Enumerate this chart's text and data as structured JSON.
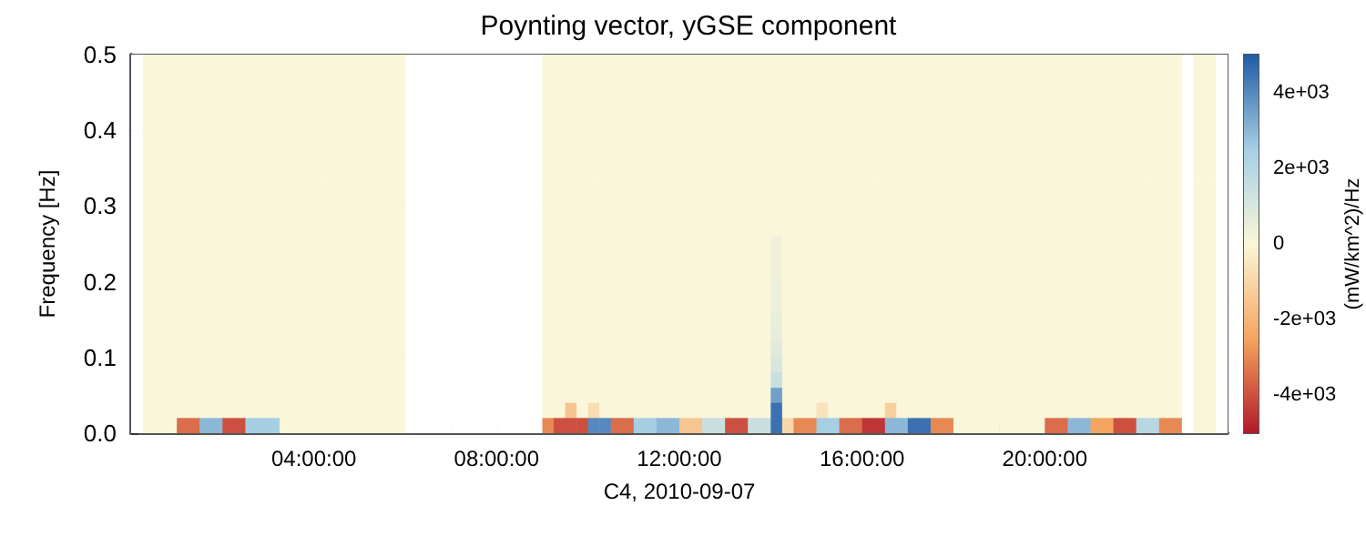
{
  "chart_data": {
    "type": "heatmap",
    "title": "Poynting vector, yGSE component",
    "xlabel": "C4, 2010-09-07",
    "ylabel": "Frequency [Hz]",
    "clabel": "(mW/km^2)/Hz",
    "x": [
      0.125,
      0.375,
      0.625,
      0.875,
      1.125,
      1.375,
      1.625,
      1.875,
      2.125,
      2.375,
      2.625,
      2.875,
      3.125,
      3.375,
      3.625,
      3.875,
      4.125,
      4.375,
      4.625,
      4.875,
      5.125,
      5.375,
      5.625,
      5.875,
      6.125,
      6.375,
      6.625,
      6.875,
      7.125,
      7.375,
      7.625,
      7.875,
      8.125,
      8.375,
      8.625,
      8.875,
      9.125,
      9.375,
      9.625,
      9.875,
      10.125,
      10.375,
      10.625,
      10.875,
      11.125,
      11.375,
      11.625,
      11.875,
      12.125,
      12.375,
      12.625,
      12.875,
      13.125,
      13.375,
      13.625,
      13.875,
      14.125,
      14.375,
      14.625,
      14.875,
      15.125,
      15.375,
      15.625,
      15.875,
      16.125,
      16.375,
      16.625,
      16.875,
      17.125,
      17.375,
      17.625,
      17.875,
      18.125,
      18.375,
      18.625,
      18.875,
      19.125,
      19.375,
      19.625,
      19.875,
      20.125,
      20.375,
      20.625,
      20.875,
      21.125,
      21.375,
      21.625,
      21.875,
      22.125,
      22.375,
      22.625,
      22.875,
      23.125,
      23.375,
      23.625,
      23.875
    ],
    "y": [
      0.49,
      0.47,
      0.45,
      0.43,
      0.41,
      0.39,
      0.37,
      0.35,
      0.33,
      0.31,
      0.29,
      0.27,
      0.25,
      0.23,
      0.21,
      0.19,
      0.17,
      0.15,
      0.13,
      0.11,
      0.09,
      0.07,
      0.05,
      0.03,
      0.01
    ],
    "xlim": [
      0,
      24
    ],
    "ylim": [
      0,
      0.5
    ],
    "xticks": [
      {
        "value": 1,
        "label": null
      },
      {
        "value": 2,
        "label": null
      },
      {
        "value": 3,
        "label": null
      },
      {
        "value": 4,
        "label": "04:00:00"
      },
      {
        "value": 5,
        "label": null
      },
      {
        "value": 6,
        "label": null
      },
      {
        "value": 7,
        "label": null
      },
      {
        "value": 8,
        "label": "08:00:00"
      },
      {
        "value": 9,
        "label": null
      },
      {
        "value": 10,
        "label": null
      },
      {
        "value": 11,
        "label": null
      },
      {
        "value": 12,
        "label": "12:00:00"
      },
      {
        "value": 13,
        "label": null
      },
      {
        "value": 14,
        "label": null
      },
      {
        "value": 15,
        "label": null
      },
      {
        "value": 16,
        "label": "16:00:00"
      },
      {
        "value": 17,
        "label": null
      },
      {
        "value": 18,
        "label": null
      },
      {
        "value": 19,
        "label": null
      },
      {
        "value": 20,
        "label": "20:00:00"
      },
      {
        "value": 21,
        "label": null
      },
      {
        "value": 22,
        "label": null
      },
      {
        "value": 23,
        "label": null
      }
    ],
    "yticks": [
      {
        "value": 0,
        "label": "0.0"
      },
      {
        "value": 0.1,
        "label": "0.1"
      },
      {
        "value": 0.2,
        "label": "0.2"
      },
      {
        "value": 0.3,
        "label": "0.3"
      },
      {
        "value": 0.4,
        "label": "0.4"
      },
      {
        "value": 0.5,
        "label": "0.5"
      }
    ],
    "clim": [
      -5000,
      5000
    ],
    "cticks": [
      {
        "value": -4000,
        "label": "-4e+03"
      },
      {
        "value": -2000,
        "label": "-2e+03"
      },
      {
        "value": 0,
        "label": "0"
      },
      {
        "value": 2000,
        "label": "2e+03"
      },
      {
        "value": 4000,
        "label": "4e+03"
      }
    ],
    "cells": [
      [
        null,
        0,
        0,
        0,
        0,
        0,
        0,
        0,
        0,
        0,
        0,
        0,
        0,
        0,
        0,
        0,
        0,
        0,
        0,
        0,
        0,
        0,
        0,
        0,
        null,
        null,
        null,
        null,
        null,
        null,
        null,
        null,
        null,
        null,
        null,
        null,
        0,
        0,
        0,
        0,
        0,
        0,
        0,
        0,
        0,
        0,
        0,
        0,
        0,
        0,
        0,
        0,
        0,
        0,
        0,
        0,
        0,
        0,
        0,
        0,
        0,
        0,
        0,
        0,
        0,
        0,
        0,
        0,
        0,
        0,
        0,
        0,
        0,
        0,
        0,
        0,
        0,
        0,
        0,
        0,
        0,
        0,
        0,
        0,
        0,
        0,
        0,
        0,
        0,
        0,
        0,
        0,
        null,
        0,
        0,
        null
      ],
      [
        null,
        0,
        0,
        0,
        0,
        0,
        0,
        0,
        0,
        0,
        0,
        0,
        0,
        0,
        0,
        0,
        0,
        0,
        0,
        0,
        0,
        0,
        0,
        0,
        null,
        null,
        null,
        null,
        null,
        null,
        null,
        null,
        null,
        null,
        null,
        null,
        0,
        0,
        0,
        0,
        0,
        0,
        0,
        0,
        0,
        0,
        0,
        0,
        0,
        0,
        0,
        0,
        0,
        0,
        0,
        0,
        0,
        0,
        0,
        0,
        0,
        0,
        0,
        0,
        0,
        0,
        0,
        0,
        0,
        0,
        0,
        0,
        0,
        0,
        0,
        0,
        0,
        0,
        0,
        0,
        0,
        0,
        0,
        0,
        0,
        0,
        0,
        0,
        0,
        0,
        0,
        0,
        null,
        0,
        0,
        null
      ],
      [
        null,
        0,
        0,
        0,
        0,
        0,
        0,
        0,
        0,
        0,
        0,
        0,
        0,
        0,
        0,
        0,
        0,
        0,
        0,
        0,
        0,
        0,
        0,
        0,
        null,
        null,
        null,
        null,
        null,
        null,
        null,
        null,
        null,
        null,
        null,
        null,
        0,
        0,
        0,
        0,
        0,
        0,
        0,
        0,
        0,
        0,
        0,
        0,
        0,
        0,
        0,
        0,
        0,
        0,
        0,
        0,
        0,
        0,
        0,
        0,
        0,
        0,
        0,
        0,
        0,
        0,
        0,
        0,
        0,
        0,
        0,
        0,
        0,
        0,
        0,
        0,
        0,
        0,
        0,
        0,
        0,
        0,
        0,
        0,
        0,
        0,
        0,
        0,
        0,
        0,
        0,
        0,
        null,
        0,
        0,
        null
      ],
      [
        null,
        0,
        0,
        0,
        0,
        0,
        0,
        0,
        0,
        0,
        0,
        0,
        0,
        0,
        0,
        0,
        0,
        0,
        0,
        0,
        0,
        0,
        0,
        0,
        null,
        null,
        null,
        null,
        null,
        null,
        null,
        null,
        null,
        null,
        null,
        null,
        0,
        0,
        0,
        0,
        0,
        0,
        0,
        0,
        0,
        0,
        0,
        0,
        0,
        0,
        0,
        0,
        0,
        0,
        0,
        0,
        0,
        0,
        0,
        0,
        0,
        0,
        0,
        0,
        0,
        0,
        0,
        0,
        0,
        0,
        0,
        0,
        0,
        0,
        0,
        0,
        0,
        0,
        0,
        0,
        0,
        0,
        0,
        0,
        0,
        0,
        0,
        0,
        0,
        0,
        0,
        0,
        null,
        0,
        0,
        null
      ],
      [
        null,
        0,
        0,
        0,
        0,
        0,
        0,
        0,
        0,
        0,
        0,
        0,
        0,
        0,
        0,
        0,
        0,
        0,
        0,
        0,
        0,
        0,
        0,
        0,
        null,
        null,
        null,
        null,
        null,
        null,
        null,
        null,
        null,
        null,
        null,
        null,
        0,
        0,
        0,
        0,
        0,
        0,
        0,
        0,
        0,
        0,
        0,
        0,
        0,
        0,
        0,
        0,
        0,
        0,
        0,
        0,
        0,
        0,
        0,
        0,
        0,
        0,
        0,
        0,
        0,
        0,
        0,
        0,
        0,
        0,
        0,
        0,
        0,
        0,
        0,
        0,
        0,
        0,
        0,
        0,
        0,
        0,
        0,
        0,
        0,
        0,
        0,
        0,
        0,
        0,
        0,
        0,
        null,
        0,
        0,
        null
      ],
      [
        null,
        0,
        0,
        0,
        0,
        0,
        0,
        0,
        0,
        0,
        0,
        0,
        0,
        0,
        0,
        0,
        0,
        0,
        0,
        0,
        0,
        0,
        0,
        0,
        null,
        null,
        null,
        null,
        null,
        null,
        null,
        null,
        null,
        null,
        null,
        null,
        0,
        0,
        0,
        0,
        0,
        0,
        0,
        0,
        0,
        0,
        0,
        0,
        0,
        0,
        0,
        0,
        0,
        0,
        0,
        0,
        0,
        0,
        0,
        0,
        0,
        0,
        0,
        0,
        0,
        0,
        0,
        0,
        0,
        0,
        0,
        0,
        0,
        0,
        0,
        0,
        0,
        0,
        0,
        0,
        0,
        0,
        0,
        0,
        0,
        0,
        0,
        0,
        0,
        0,
        0,
        0,
        null,
        0,
        0,
        null
      ],
      [
        null,
        0,
        0,
        0,
        0,
        0,
        0,
        0,
        0,
        0,
        0,
        0,
        0,
        0,
        0,
        0,
        0,
        0,
        0,
        0,
        0,
        0,
        0,
        0,
        null,
        null,
        null,
        null,
        null,
        null,
        null,
        null,
        null,
        null,
        null,
        null,
        0,
        0,
        0,
        0,
        0,
        0,
        0,
        0,
        0,
        0,
        0,
        0,
        0,
        0,
        0,
        0,
        0,
        0,
        0,
        0,
        0,
        0,
        0,
        0,
        0,
        0,
        0,
        0,
        0,
        0,
        0,
        0,
        0,
        0,
        0,
        0,
        0,
        0,
        0,
        0,
        0,
        0,
        0,
        0,
        0,
        0,
        0,
        0,
        0,
        0,
        0,
        0,
        0,
        0,
        0,
        0,
        null,
        0,
        0,
        null
      ],
      [
        null,
        0,
        0,
        0,
        0,
        0,
        0,
        0,
        0,
        0,
        0,
        0,
        0,
        0,
        0,
        0,
        0,
        0,
        0,
        0,
        0,
        0,
        0,
        0,
        null,
        null,
        null,
        null,
        null,
        null,
        null,
        null,
        null,
        null,
        null,
        null,
        0,
        0,
        0,
        0,
        0,
        0,
        0,
        0,
        0,
        0,
        0,
        0,
        0,
        0,
        0,
        0,
        0,
        0,
        0,
        0,
        0,
        0,
        0,
        0,
        0,
        0,
        0,
        0,
        0,
        0,
        0,
        0,
        0,
        0,
        0,
        0,
        0,
        0,
        0,
        0,
        0,
        0,
        0,
        0,
        0,
        0,
        0,
        0,
        0,
        0,
        0,
        0,
        0,
        0,
        0,
        0,
        null,
        0,
        0,
        null
      ],
      [
        null,
        0,
        0,
        0,
        0,
        0,
        0,
        0,
        0,
        0,
        0,
        0,
        0,
        0,
        0,
        0,
        0,
        0,
        0,
        0,
        0,
        0,
        0,
        0,
        null,
        null,
        null,
        null,
        null,
        null,
        null,
        null,
        null,
        null,
        null,
        null,
        0,
        0,
        0,
        0,
        0,
        0,
        0,
        0,
        0,
        0,
        0,
        0,
        0,
        0,
        0,
        0,
        0,
        0,
        0,
        0,
        0,
        0,
        0,
        0,
        0,
        0,
        0,
        0,
        0,
        0,
        0,
        0,
        0,
        0,
        0,
        0,
        0,
        0,
        0,
        0,
        0,
        0,
        0,
        0,
        0,
        0,
        0,
        0,
        0,
        0,
        0,
        0,
        0,
        0,
        0,
        0,
        null,
        0,
        0,
        null
      ],
      [
        null,
        0,
        0,
        0,
        0,
        0,
        0,
        0,
        0,
        0,
        0,
        0,
        0,
        0,
        0,
        0,
        0,
        0,
        0,
        0,
        0,
        0,
        0,
        0,
        null,
        null,
        null,
        null,
        null,
        null,
        null,
        null,
        null,
        null,
        null,
        null,
        0,
        0,
        0,
        0,
        0,
        0,
        0,
        0,
        0,
        0,
        0,
        0,
        0,
        0,
        0,
        0,
        0,
        0,
        0,
        0,
        0,
        0,
        0,
        0,
        0,
        0,
        0,
        0,
        0,
        0,
        0,
        0,
        0,
        0,
        0,
        0,
        0,
        0,
        0,
        0,
        0,
        0,
        0,
        0,
        0,
        0,
        0,
        0,
        0,
        0,
        0,
        0,
        0,
        0,
        0,
        0,
        null,
        0,
        0,
        null
      ],
      [
        null,
        0,
        0,
        0,
        0,
        0,
        0,
        0,
        0,
        0,
        0,
        0,
        0,
        0,
        0,
        0,
        0,
        0,
        0,
        0,
        0,
        0,
        0,
        0,
        null,
        null,
        null,
        null,
        null,
        null,
        null,
        null,
        null,
        null,
        null,
        null,
        0,
        0,
        0,
        0,
        0,
        0,
        0,
        0,
        0,
        0,
        0,
        0,
        0,
        0,
        0,
        0,
        0,
        0,
        0,
        0,
        0,
        0,
        0,
        0,
        0,
        0,
        0,
        0,
        0,
        0,
        0,
        0,
        0,
        0,
        0,
        0,
        0,
        0,
        0,
        0,
        0,
        0,
        0,
        0,
        0,
        0,
        0,
        0,
        0,
        0,
        0,
        0,
        0,
        0,
        0,
        0,
        null,
        0,
        0,
        null
      ],
      [
        null,
        0,
        0,
        0,
        0,
        0,
        0,
        0,
        0,
        0,
        0,
        0,
        0,
        0,
        0,
        0,
        0,
        0,
        0,
        0,
        0,
        0,
        0,
        0,
        null,
        null,
        null,
        null,
        null,
        null,
        null,
        null,
        null,
        null,
        null,
        null,
        0,
        0,
        0,
        0,
        0,
        0,
        0,
        0,
        0,
        0,
        0,
        0,
        0,
        0,
        0,
        0,
        0,
        0,
        0,
        0,
        0,
        0,
        0,
        0,
        0,
        0,
        0,
        0,
        0,
        0,
        0,
        0,
        0,
        0,
        0,
        0,
        0,
        0,
        0,
        0,
        0,
        0,
        0,
        0,
        0,
        0,
        0,
        0,
        0,
        0,
        0,
        0,
        0,
        0,
        0,
        0,
        null,
        0,
        0,
        null
      ],
      [
        null,
        0,
        0,
        0,
        0,
        0,
        0,
        0,
        0,
        0,
        0,
        0,
        0,
        0,
        0,
        0,
        0,
        0,
        0,
        0,
        0,
        0,
        0,
        0,
        null,
        null,
        null,
        null,
        null,
        null,
        null,
        null,
        null,
        null,
        null,
        null,
        0,
        0,
        0,
        0,
        0,
        0,
        0,
        0,
        0,
        0,
        0,
        0,
        0,
        0,
        0,
        0,
        0,
        0,
        0,
        0,
        300,
        0,
        0,
        0,
        0,
        0,
        0,
        0,
        0,
        0,
        0,
        0,
        0,
        0,
        0,
        0,
        0,
        0,
        0,
        0,
        0,
        0,
        0,
        0,
        0,
        0,
        0,
        0,
        0,
        0,
        0,
        0,
        0,
        0,
        0,
        0,
        null,
        0,
        0,
        null
      ],
      [
        null,
        0,
        0,
        0,
        0,
        0,
        0,
        0,
        0,
        0,
        0,
        0,
        0,
        0,
        0,
        0,
        0,
        0,
        0,
        0,
        0,
        0,
        0,
        0,
        null,
        null,
        null,
        null,
        null,
        null,
        null,
        null,
        null,
        null,
        null,
        null,
        0,
        0,
        0,
        0,
        0,
        0,
        0,
        0,
        0,
        0,
        0,
        0,
        0,
        0,
        0,
        0,
        0,
        0,
        0,
        0,
        300,
        0,
        0,
        0,
        0,
        0,
        0,
        0,
        0,
        0,
        0,
        0,
        0,
        0,
        0,
        0,
        0,
        0,
        0,
        0,
        0,
        0,
        0,
        0,
        0,
        0,
        0,
        0,
        0,
        0,
        0,
        0,
        0,
        0,
        0,
        0,
        null,
        0,
        0,
        null
      ],
      [
        null,
        0,
        0,
        0,
        0,
        0,
        0,
        0,
        0,
        0,
        0,
        0,
        0,
        0,
        0,
        0,
        0,
        0,
        0,
        0,
        0,
        0,
        0,
        0,
        null,
        null,
        null,
        null,
        null,
        null,
        null,
        null,
        null,
        null,
        null,
        null,
        0,
        0,
        0,
        0,
        0,
        0,
        0,
        0,
        0,
        0,
        0,
        0,
        0,
        0,
        0,
        0,
        0,
        0,
        0,
        0,
        300,
        0,
        0,
        0,
        0,
        0,
        0,
        0,
        0,
        0,
        0,
        0,
        0,
        0,
        0,
        0,
        0,
        0,
        0,
        0,
        0,
        0,
        0,
        0,
        0,
        0,
        0,
        0,
        0,
        0,
        0,
        0,
        0,
        0,
        0,
        0,
        null,
        0,
        0,
        null
      ],
      [
        null,
        0,
        0,
        0,
        0,
        0,
        0,
        0,
        0,
        0,
        0,
        0,
        0,
        0,
        0,
        0,
        0,
        0,
        0,
        0,
        0,
        0,
        0,
        0,
        null,
        null,
        null,
        null,
        null,
        null,
        null,
        null,
        null,
        null,
        null,
        null,
        0,
        0,
        0,
        0,
        0,
        0,
        0,
        0,
        0,
        0,
        0,
        0,
        0,
        0,
        0,
        0,
        0,
        0,
        0,
        0,
        400,
        0,
        0,
        0,
        0,
        0,
        0,
        0,
        0,
        0,
        0,
        0,
        0,
        0,
        0,
        0,
        0,
        0,
        0,
        0,
        0,
        0,
        0,
        0,
        0,
        0,
        0,
        0,
        0,
        0,
        0,
        0,
        0,
        0,
        0,
        0,
        null,
        0,
        0,
        null
      ],
      [
        null,
        0,
        0,
        0,
        0,
        0,
        0,
        0,
        0,
        0,
        0,
        0,
        0,
        0,
        0,
        0,
        0,
        0,
        0,
        0,
        0,
        0,
        0,
        0,
        null,
        null,
        null,
        null,
        null,
        null,
        null,
        null,
        null,
        null,
        null,
        null,
        0,
        0,
        0,
        0,
        0,
        0,
        0,
        0,
        0,
        0,
        0,
        0,
        0,
        0,
        0,
        0,
        0,
        0,
        0,
        0,
        400,
        0,
        0,
        0,
        0,
        0,
        0,
        0,
        0,
        0,
        0,
        0,
        0,
        0,
        0,
        0,
        0,
        0,
        0,
        0,
        0,
        0,
        0,
        0,
        0,
        0,
        0,
        0,
        0,
        0,
        0,
        0,
        0,
        0,
        0,
        0,
        null,
        0,
        0,
        null
      ],
      [
        null,
        0,
        0,
        0,
        0,
        0,
        0,
        0,
        0,
        0,
        0,
        0,
        0,
        0,
        0,
        0,
        0,
        0,
        0,
        0,
        0,
        0,
        0,
        0,
        null,
        null,
        null,
        null,
        null,
        null,
        null,
        null,
        null,
        null,
        null,
        null,
        0,
        0,
        0,
        0,
        0,
        0,
        0,
        0,
        0,
        0,
        0,
        0,
        0,
        0,
        0,
        0,
        0,
        0,
        0,
        0,
        500,
        0,
        0,
        0,
        0,
        0,
        0,
        0,
        0,
        0,
        0,
        0,
        0,
        0,
        0,
        0,
        0,
        0,
        0,
        0,
        0,
        0,
        0,
        0,
        0,
        0,
        0,
        0,
        0,
        0,
        0,
        0,
        0,
        0,
        0,
        0,
        null,
        0,
        0,
        null
      ],
      [
        null,
        0,
        0,
        0,
        0,
        0,
        0,
        0,
        0,
        0,
        0,
        0,
        0,
        0,
        0,
        0,
        0,
        0,
        0,
        0,
        0,
        0,
        0,
        0,
        null,
        null,
        null,
        null,
        null,
        null,
        null,
        null,
        null,
        null,
        null,
        null,
        0,
        0,
        0,
        0,
        0,
        0,
        0,
        0,
        0,
        0,
        0,
        0,
        0,
        0,
        0,
        0,
        0,
        0,
        0,
        0,
        600,
        0,
        0,
        0,
        0,
        0,
        0,
        0,
        0,
        0,
        0,
        0,
        0,
        0,
        0,
        0,
        0,
        0,
        0,
        0,
        0,
        0,
        0,
        0,
        0,
        0,
        0,
        0,
        0,
        0,
        0,
        0,
        0,
        0,
        0,
        0,
        null,
        0,
        0,
        null
      ],
      [
        null,
        0,
        0,
        0,
        0,
        0,
        0,
        0,
        0,
        0,
        0,
        0,
        0,
        0,
        0,
        0,
        0,
        0,
        0,
        0,
        0,
        0,
        0,
        0,
        null,
        null,
        null,
        null,
        null,
        null,
        null,
        null,
        null,
        null,
        null,
        null,
        0,
        0,
        0,
        0,
        0,
        0,
        0,
        0,
        0,
        0,
        0,
        0,
        0,
        0,
        0,
        0,
        0,
        0,
        0,
        0,
        800,
        0,
        0,
        0,
        0,
        0,
        0,
        0,
        0,
        0,
        0,
        0,
        0,
        0,
        0,
        0,
        0,
        0,
        0,
        0,
        0,
        0,
        0,
        0,
        0,
        0,
        0,
        0,
        0,
        0,
        0,
        0,
        0,
        0,
        0,
        0,
        null,
        0,
        0,
        null
      ],
      [
        null,
        0,
        0,
        0,
        0,
        0,
        0,
        0,
        0,
        0,
        0,
        0,
        0,
        0,
        0,
        0,
        0,
        0,
        0,
        0,
        0,
        0,
        0,
        0,
        null,
        null,
        null,
        null,
        null,
        null,
        null,
        null,
        null,
        null,
        null,
        null,
        0,
        0,
        0,
        0,
        0,
        0,
        0,
        0,
        0,
        0,
        0,
        0,
        0,
        0,
        0,
        0,
        0,
        0,
        0,
        0,
        1000,
        0,
        0,
        0,
        0,
        0,
        0,
        0,
        0,
        0,
        0,
        0,
        0,
        0,
        0,
        0,
        0,
        0,
        0,
        0,
        0,
        0,
        0,
        0,
        0,
        0,
        0,
        0,
        0,
        0,
        0,
        0,
        0,
        0,
        0,
        0,
        null,
        0,
        0,
        null
      ],
      [
        null,
        0,
        0,
        0,
        0,
        0,
        0,
        0,
        0,
        0,
        0,
        0,
        0,
        0,
        0,
        0,
        0,
        0,
        0,
        0,
        0,
        0,
        0,
        0,
        null,
        null,
        null,
        null,
        null,
        null,
        null,
        null,
        null,
        null,
        null,
        null,
        0,
        0,
        0,
        0,
        0,
        0,
        0,
        0,
        0,
        0,
        0,
        0,
        0,
        0,
        0,
        0,
        0,
        0,
        0,
        0,
        1500,
        0,
        0,
        0,
        0,
        0,
        0,
        0,
        0,
        0,
        0,
        0,
        0,
        0,
        0,
        0,
        0,
        0,
        0,
        0,
        0,
        0,
        0,
        0,
        0,
        0,
        0,
        0,
        0,
        0,
        0,
        0,
        0,
        0,
        0,
        0,
        null,
        0,
        0,
        null
      ],
      [
        null,
        0,
        0,
        0,
        0,
        0,
        0,
        0,
        0,
        0,
        0,
        0,
        0,
        0,
        0,
        0,
        0,
        0,
        0,
        0,
        0,
        0,
        0,
        0,
        null,
        null,
        null,
        null,
        null,
        null,
        null,
        null,
        null,
        null,
        null,
        null,
        0,
        0,
        0,
        0,
        0,
        0,
        0,
        0,
        0,
        0,
        0,
        0,
        0,
        0,
        0,
        0,
        0,
        0,
        0,
        0,
        3500,
        0,
        0,
        0,
        0,
        0,
        0,
        0,
        0,
        0,
        0,
        0,
        0,
        0,
        0,
        0,
        0,
        0,
        0,
        0,
        0,
        0,
        0,
        0,
        0,
        0,
        0,
        0,
        0,
        0,
        0,
        0,
        0,
        0,
        0,
        0,
        null,
        0,
        0,
        null
      ],
      [
        null,
        0,
        0,
        0,
        0,
        0,
        0,
        0,
        0,
        0,
        0,
        0,
        0,
        0,
        0,
        0,
        0,
        0,
        0,
        0,
        0,
        0,
        0,
        0,
        null,
        null,
        null,
        null,
        null,
        null,
        null,
        null,
        null,
        null,
        null,
        null,
        0,
        0,
        -1500,
        0,
        -800,
        0,
        0,
        0,
        0,
        0,
        0,
        0,
        0,
        0,
        0,
        0,
        0,
        0,
        0,
        0,
        4500,
        0,
        0,
        0,
        -600,
        0,
        0,
        0,
        0,
        0,
        -1200,
        0,
        0,
        0,
        0,
        0,
        0,
        0,
        0,
        0,
        0,
        0,
        0,
        0,
        0,
        0,
        0,
        0,
        0,
        0,
        0,
        0,
        0,
        0,
        0,
        0,
        null,
        0,
        0,
        null
      ],
      [
        null,
        0,
        0,
        0,
        -3500,
        -3500,
        3000,
        3000,
        -4000,
        -4000,
        2500,
        2500,
        2500,
        0,
        0,
        0,
        0,
        0,
        0,
        0,
        0,
        0,
        0,
        0,
        null,
        null,
        null,
        null,
        null,
        null,
        null,
        null,
        null,
        null,
        null,
        null,
        -3000,
        -4000,
        -4000,
        -4000,
        4000,
        4000,
        -3500,
        -3500,
        2500,
        2500,
        3000,
        3000,
        -1500,
        -1500,
        1500,
        1500,
        -4000,
        -4000,
        1500,
        1500,
        4500,
        -1000,
        -3000,
        -3000,
        2500,
        2500,
        -3500,
        -3500,
        -4500,
        -4500,
        3000,
        3000,
        4500,
        4500,
        -3000,
        -3000,
        0,
        0,
        0,
        0,
        0,
        0,
        0,
        0,
        -3500,
        -3500,
        3000,
        3000,
        -2500,
        -2500,
        -4000,
        -4000,
        2000,
        2000,
        -3000,
        -3000,
        null,
        0,
        0,
        null
      ]
    ]
  }
}
